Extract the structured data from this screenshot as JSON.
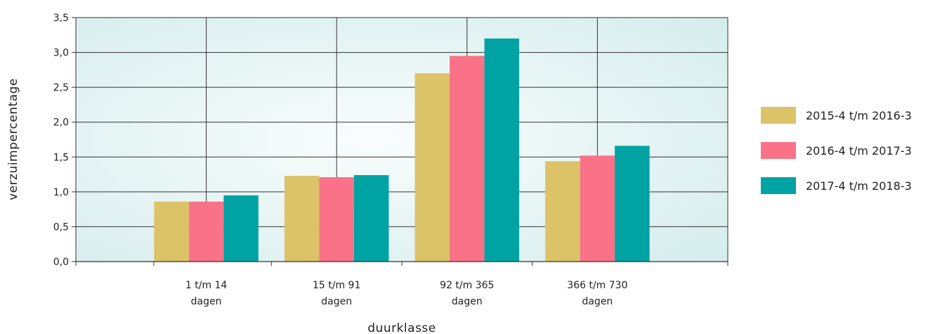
{
  "chart_data": {
    "type": "bar",
    "title": "",
    "xlabel": "duurklasse",
    "ylabel": "verzuimpercentage",
    "ylim": [
      0,
      3.5
    ],
    "yticks": [
      "0,0",
      "0,5",
      "1,0",
      "1,5",
      "2,0",
      "2,5",
      "3,0",
      "3,5"
    ],
    "categories": [
      [
        "1 t/m 14",
        "dagen"
      ],
      [
        "15 t/m 91",
        "dagen"
      ],
      [
        "92 t/m 365",
        "dagen"
      ],
      [
        "366 t/m 730",
        "dagen"
      ]
    ],
    "series": [
      {
        "name": "2015-4 t/m 2016-3",
        "color": "#dcc367",
        "values": [
          0.86,
          1.23,
          2.7,
          1.44
        ]
      },
      {
        "name": "2016-4 t/m 2017-3",
        "color": "#f97287",
        "values": [
          0.86,
          1.21,
          2.95,
          1.52
        ]
      },
      {
        "name": "2017-4 t/m 2018-3",
        "color": "#00a3a3",
        "values": [
          0.95,
          1.24,
          3.2,
          1.66
        ]
      }
    ],
    "grid": true,
    "legend_position": "right"
  }
}
